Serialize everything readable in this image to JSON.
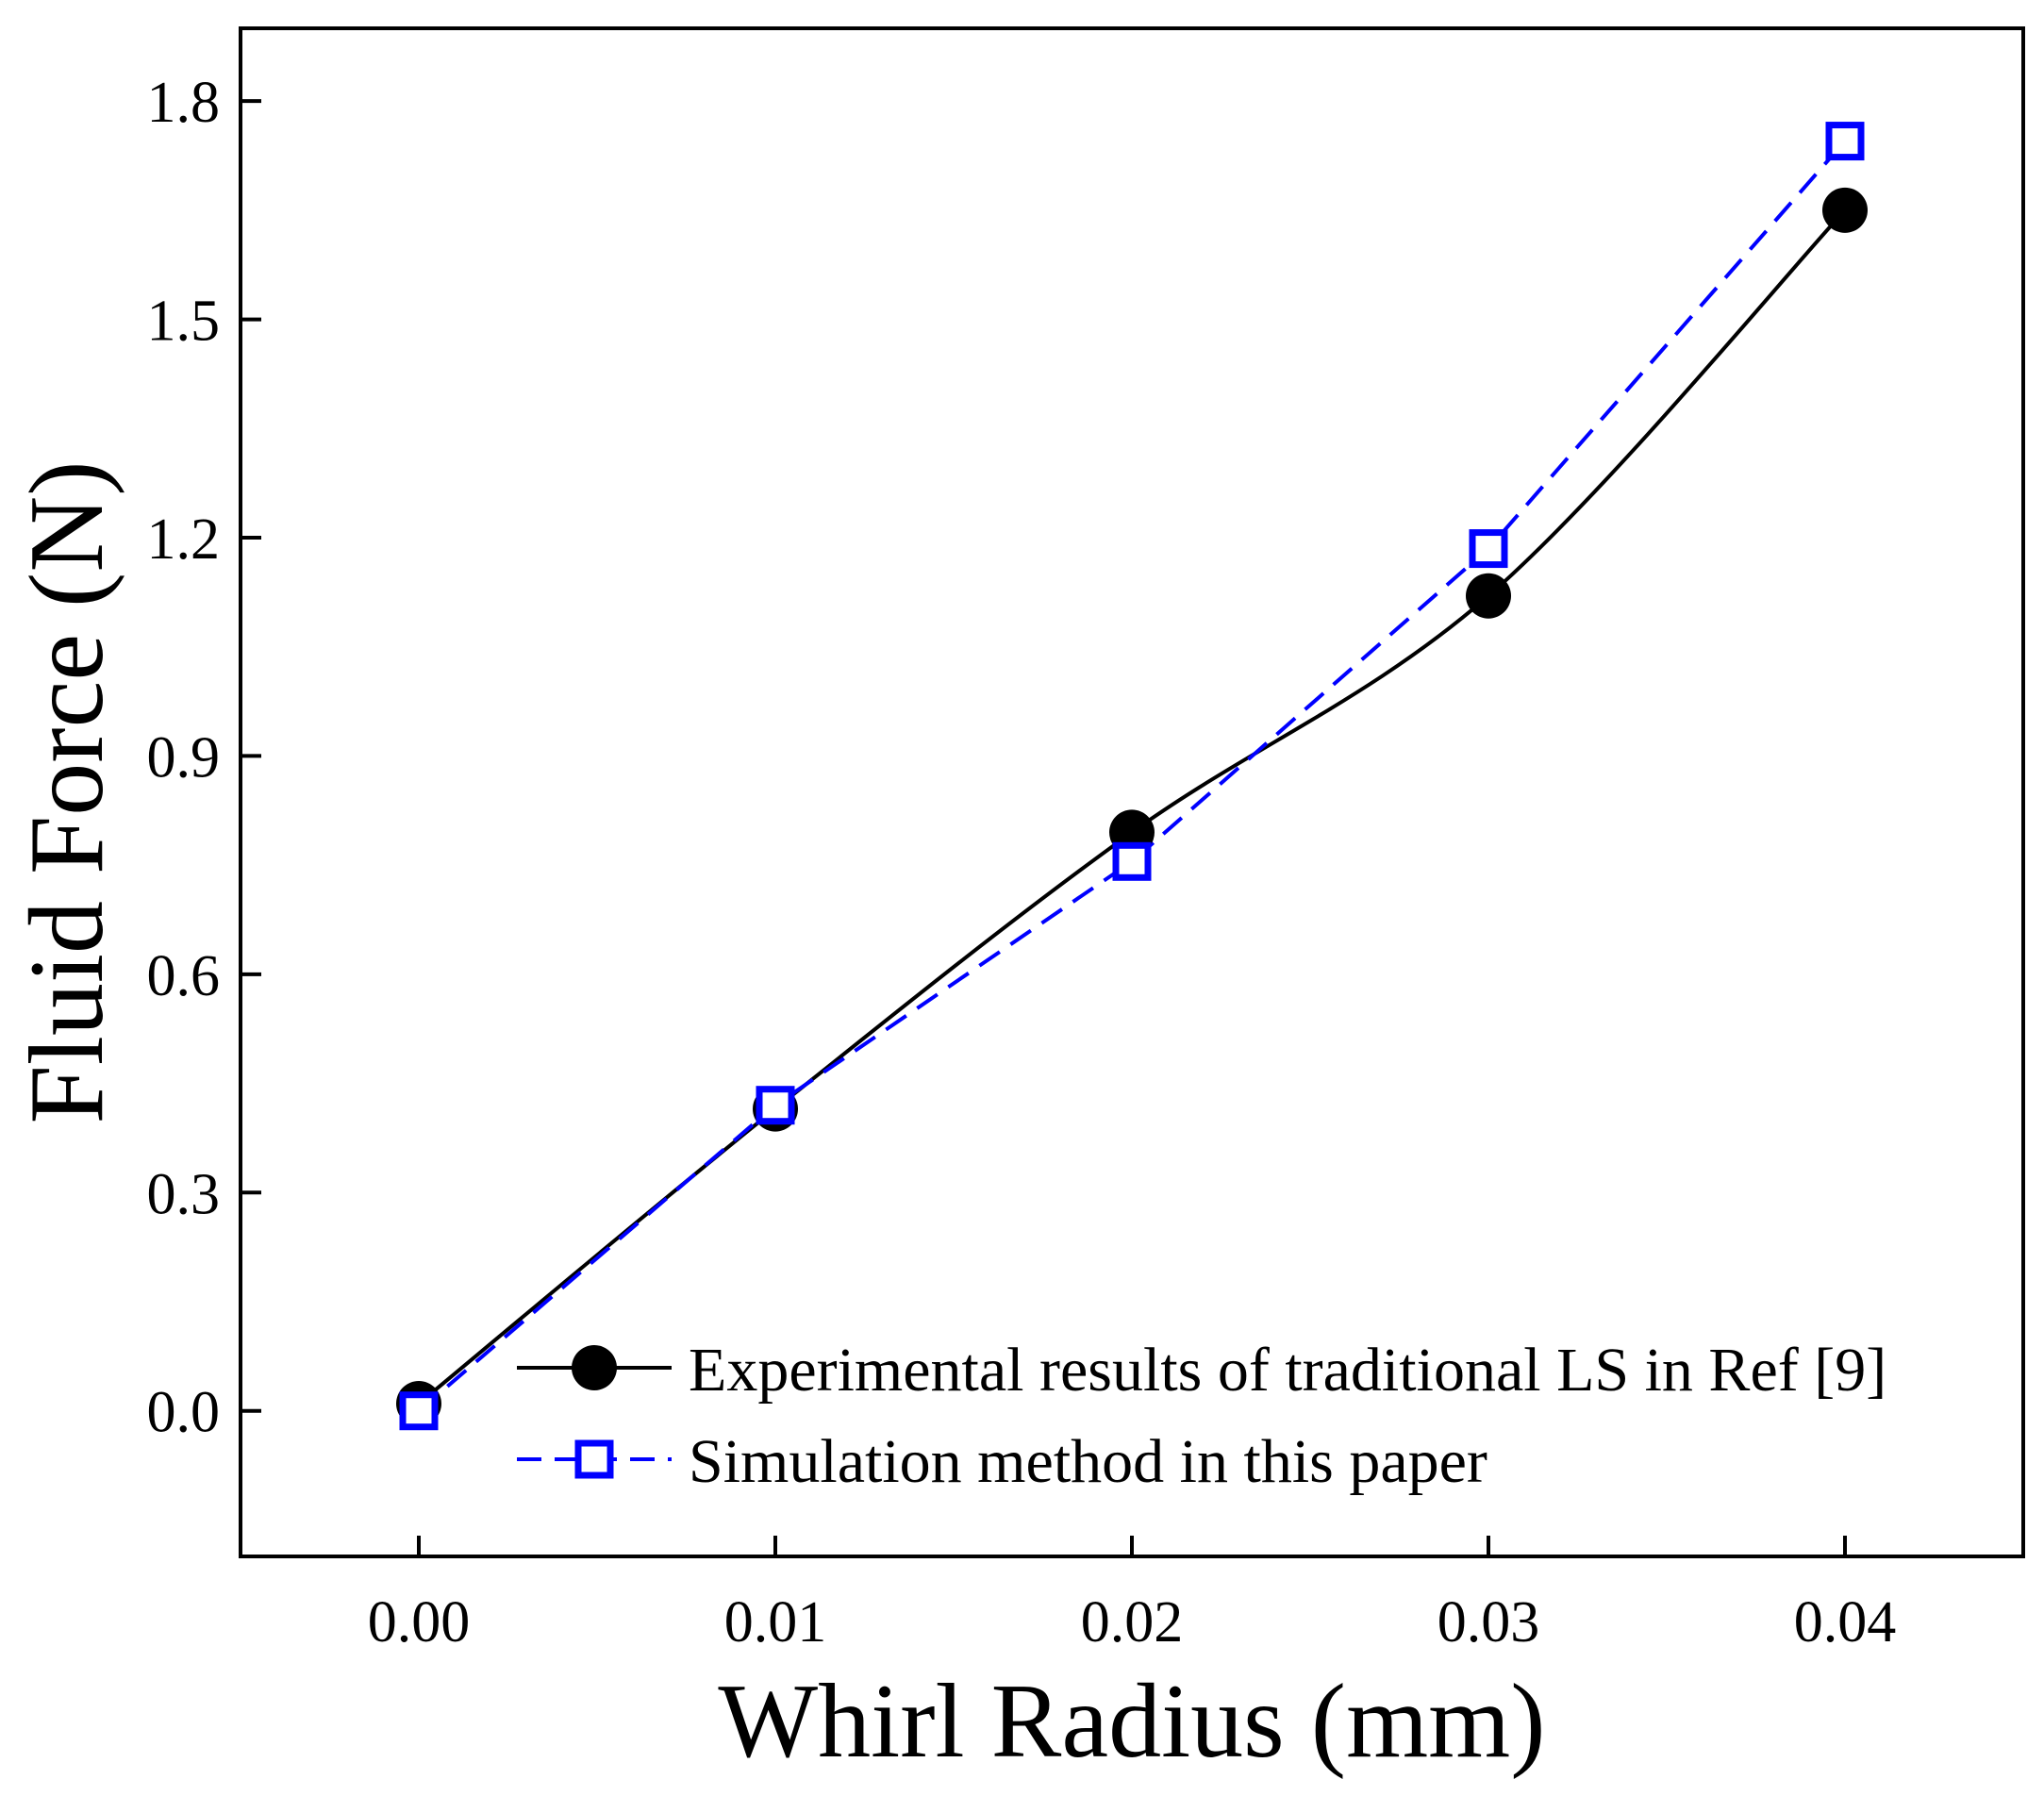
{
  "chart_data": {
    "type": "line",
    "title": "",
    "xlabel": "Whirl Radius (mm)",
    "ylabel": "Fluid Force (N)",
    "xlim": [
      -0.005,
      0.045
    ],
    "ylim": [
      -0.2,
      1.9
    ],
    "xticks": [
      0.0,
      0.01,
      0.02,
      0.03,
      0.04
    ],
    "xtick_labels": [
      "0.00",
      "0.01",
      "0.02",
      "0.03",
      "0.04"
    ],
    "yticks": [
      0.0,
      0.3,
      0.6,
      0.9,
      1.2,
      1.5,
      1.8
    ],
    "ytick_labels": [
      "0.0",
      "0.3",
      "0.6",
      "0.9",
      "1.2",
      "1.5",
      "1.8"
    ],
    "grid": false,
    "legend_position": "bottom-right",
    "x": [
      0.0,
      0.01,
      0.02,
      0.03,
      0.04
    ],
    "series": [
      {
        "name": "Experimental results of traditional LS in Ref [9]",
        "values": [
          0.01,
          0.415,
          0.795,
          1.12,
          1.65
        ],
        "color": "#000000",
        "line": "solid",
        "marker": "filled-circle"
      },
      {
        "name": "Simulation method in this paper",
        "values": [
          0.0,
          0.42,
          0.755,
          1.185,
          1.745
        ],
        "color": "#0000ff",
        "line": "dashed",
        "marker": "open-square"
      }
    ]
  }
}
